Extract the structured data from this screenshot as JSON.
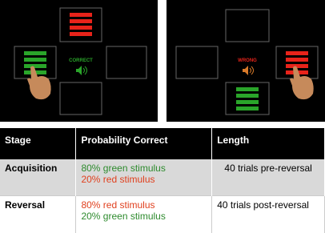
{
  "panels": [
    {
      "feedback": "CORRECT"
    },
    {
      "feedback": "WRONG"
    }
  ],
  "table": {
    "header": [
      "Stage",
      "Probability Correct",
      "Length"
    ],
    "rows": [
      {
        "stage": "Acquisition",
        "probability": [
          "80% green stimulus",
          "20% red stimulus"
        ],
        "length": "40 trials pre-reversal"
      },
      {
        "stage": "Reversal",
        "probability": [
          "80% red stimulus",
          "20% green stimulus"
        ],
        "length": "40 trials post-reversal"
      }
    ]
  }
}
